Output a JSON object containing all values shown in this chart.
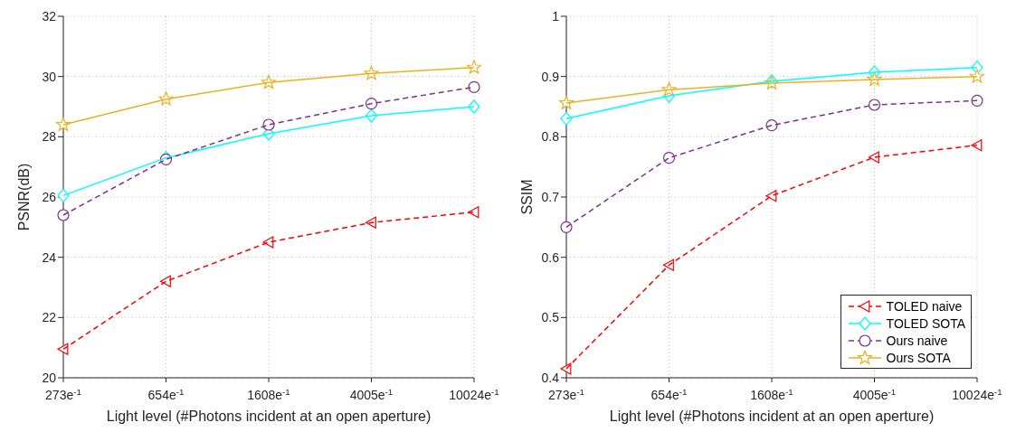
{
  "chart_data": [
    {
      "type": "line",
      "ylabel": "PSNR(dB)",
      "xlabel": "Light level (#Photons incident at an open aperture)",
      "categories": [
        "273e$^{-1}$",
        "654e$^{-1}$",
        "1608e$^{-1}$",
        "4005e$^{-1}$",
        "10024e$^{-1}$"
      ],
      "ylim": [
        20,
        32
      ],
      "yticks": [
        20,
        22,
        24,
        26,
        28,
        30,
        32
      ],
      "legend": false,
      "grid": true,
      "series": [
        {
          "color": "#ff0000",
          "marker": "triangle",
          "line_style": "dashed",
          "values": [
            20.95,
            23.2,
            24.5,
            25.15,
            25.5
          ]
        },
        {
          "color": "#00ffff",
          "marker": "diamond",
          "line_style": "solid",
          "values": [
            26.05,
            27.3,
            28.1,
            28.7,
            29.0
          ]
        },
        {
          "color": "#7e2f8e",
          "marker": "circle",
          "line_style": "dashed",
          "values": [
            25.4,
            27.25,
            28.4,
            29.1,
            29.65
          ]
        },
        {
          "color": "#edb120",
          "marker": "star",
          "line_style": "solid",
          "values": [
            28.4,
            29.25,
            29.8,
            30.1,
            30.3
          ]
        }
      ]
    },
    {
      "type": "line",
      "ylabel": "SSIM",
      "xlabel": "Light level (#Photons incident at an open aperture)",
      "categories": [
        "273e$^{-1}$",
        "654e$^{-1}$",
        "1608e$^{-1}$",
        "4005e$^{-1}$",
        "10024e$^{-1}$"
      ],
      "ylim": [
        0.4,
        1
      ],
      "yticks": [
        0.4,
        0.5,
        0.6,
        0.7,
        0.8,
        0.9,
        1
      ],
      "legend": "bottom right",
      "grid": true,
      "series": [
        {
          "name": "TOLED naive",
          "color": "#ff0000",
          "marker": "triangle",
          "line_style": "dashed",
          "values": [
            0.415,
            0.587,
            0.702,
            0.766,
            0.786
          ]
        },
        {
          "name": "TOLED SOTA",
          "color": "#00ffff",
          "marker": "diamond",
          "line_style": "solid",
          "values": [
            0.83,
            0.868,
            0.892,
            0.907,
            0.915
          ]
        },
        {
          "name": "Ours naive",
          "color": "#7e2f8e",
          "marker": "circle",
          "line_style": "dashed",
          "values": [
            0.65,
            0.765,
            0.819,
            0.853,
            0.86
          ]
        },
        {
          "name": "Ours SOTA",
          "color": "#edb120",
          "marker": "star",
          "line_style": "solid",
          "values": [
            0.856,
            0.878,
            0.889,
            0.895,
            0.9
          ]
        }
      ]
    }
  ]
}
